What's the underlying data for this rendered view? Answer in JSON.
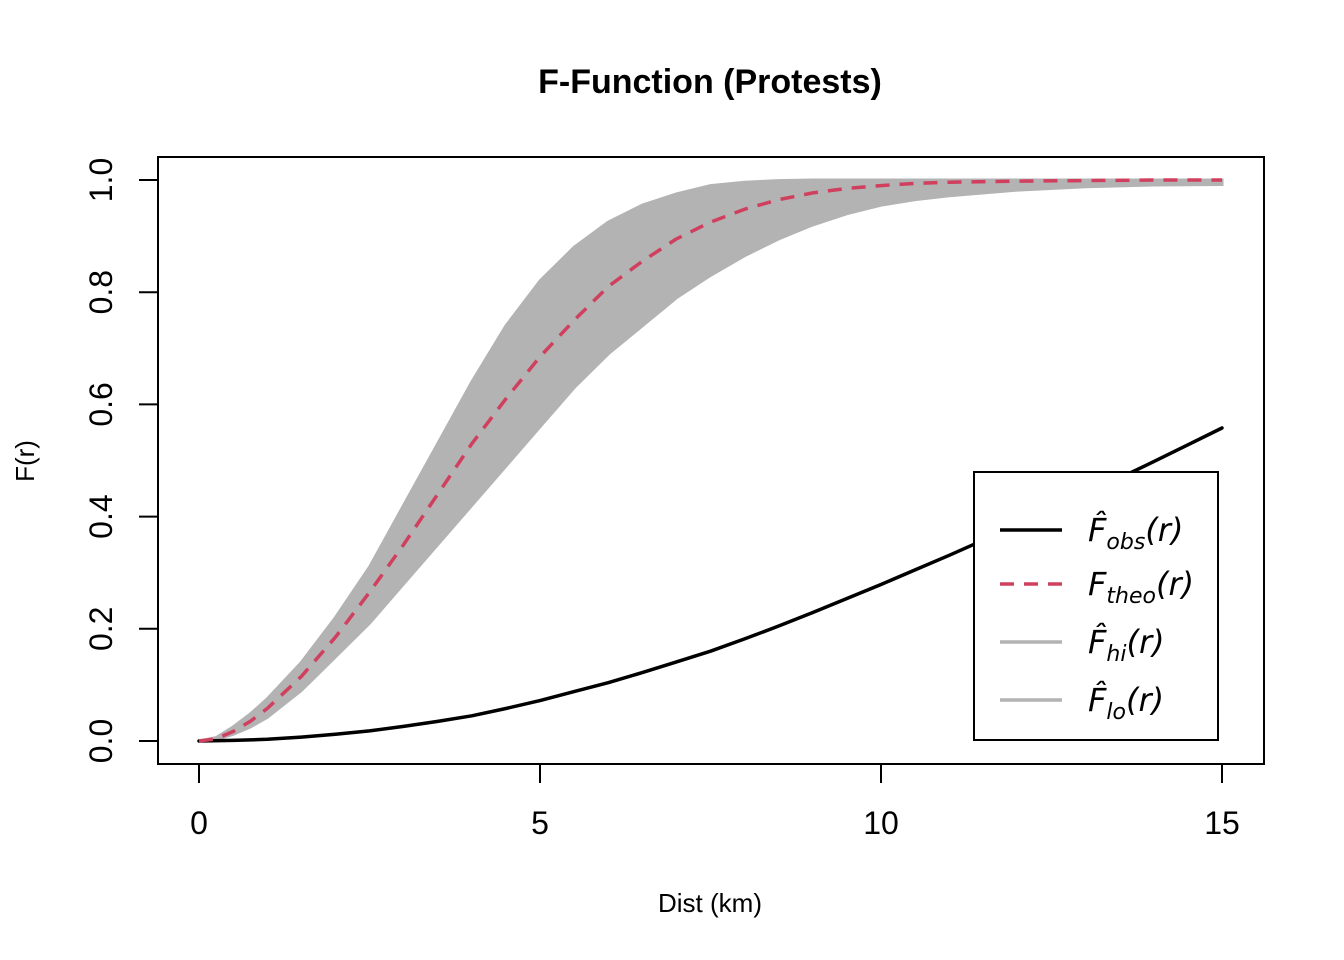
{
  "chart_data": {
    "type": "line",
    "title": "F-Function (Protests)",
    "xlabel": "Dist (km)",
    "ylabel": "F(r)",
    "xlim": [
      0,
      15
    ],
    "ylim": [
      0,
      1
    ],
    "x_ticks": [
      "0",
      "5",
      "10",
      "15"
    ],
    "y_ticks": [
      "0.0",
      "0.2",
      "0.4",
      "0.6",
      "0.8",
      "1.0"
    ],
    "legend_position": "bottom-right",
    "envelope": {
      "color": "#b3b3b3",
      "x": [
        0,
        0.25,
        0.5,
        0.75,
        1,
        1.5,
        2,
        2.5,
        3,
        3.5,
        4,
        4.5,
        5,
        5.5,
        6,
        6.5,
        7,
        7.5,
        8,
        8.5,
        9,
        9.5,
        10,
        10.5,
        11,
        12,
        13,
        14,
        15
      ],
      "hi": [
        0,
        0.006,
        0.025,
        0.048,
        0.075,
        0.14,
        0.22,
        0.31,
        0.42,
        0.53,
        0.64,
        0.74,
        0.82,
        0.88,
        0.925,
        0.955,
        0.975,
        0.99,
        0.996,
        0.999,
        1.0,
        1.0,
        1.0,
        1.0,
        1.0,
        1.0,
        1.0,
        1.0,
        1.0
      ],
      "lo": [
        0,
        0.003,
        0.012,
        0.025,
        0.042,
        0.09,
        0.15,
        0.21,
        0.28,
        0.35,
        0.42,
        0.49,
        0.56,
        0.63,
        0.69,
        0.74,
        0.79,
        0.83,
        0.865,
        0.895,
        0.92,
        0.94,
        0.955,
        0.965,
        0.972,
        0.982,
        0.988,
        0.991,
        0.992
      ]
    },
    "series": [
      {
        "name": "F̂obs(r)",
        "style": "solid",
        "color": "#000000",
        "x": [
          0,
          0.5,
          1,
          1.5,
          2,
          2.5,
          3,
          3.5,
          4,
          4.5,
          5,
          5.5,
          6,
          6.5,
          7,
          7.5,
          8,
          8.5,
          9,
          9.5,
          10,
          10.5,
          11,
          11.5,
          12,
          12.5,
          13,
          13.5,
          14,
          14.5,
          15
        ],
        "y": [
          0,
          0.001,
          0.003,
          0.007,
          0.012,
          0.018,
          0.026,
          0.035,
          0.045,
          0.058,
          0.072,
          0.088,
          0.104,
          0.122,
          0.141,
          0.16,
          0.182,
          0.205,
          0.229,
          0.254,
          0.279,
          0.305,
          0.331,
          0.358,
          0.386,
          0.413,
          0.44,
          0.469,
          0.498,
          0.528,
          0.558
        ]
      },
      {
        "name": "Ftheo(r)",
        "style": "dashed",
        "color": "#d0405e",
        "x": [
          0,
          0.25,
          0.5,
          0.75,
          1,
          1.5,
          2,
          2.5,
          3,
          3.5,
          4,
          4.5,
          5,
          5.5,
          6,
          6.5,
          7,
          7.5,
          8,
          8.5,
          9,
          9.5,
          10,
          10.5,
          11,
          12,
          13,
          14,
          15
        ],
        "y": [
          0,
          0.004,
          0.017,
          0.035,
          0.058,
          0.115,
          0.185,
          0.265,
          0.35,
          0.44,
          0.53,
          0.61,
          0.685,
          0.75,
          0.81,
          0.855,
          0.895,
          0.925,
          0.948,
          0.965,
          0.977,
          0.985,
          0.99,
          0.994,
          0.996,
          0.998,
          0.999,
          1.0,
          1.0
        ]
      }
    ],
    "legend": [
      {
        "main": "F̂",
        "sub": "obs",
        "suffix": "(r)",
        "color": "#000000",
        "style": "solid"
      },
      {
        "main": "F",
        "sub": "theo",
        "suffix": "(r)",
        "color": "#d0405e",
        "style": "dashed"
      },
      {
        "main": "F̂",
        "sub": "hi",
        "suffix": "(r)",
        "color": "#b3b3b3",
        "style": "solid"
      },
      {
        "main": "F̂",
        "sub": "lo",
        "suffix": "(r)",
        "color": "#b3b3b3",
        "style": "solid"
      }
    ]
  }
}
